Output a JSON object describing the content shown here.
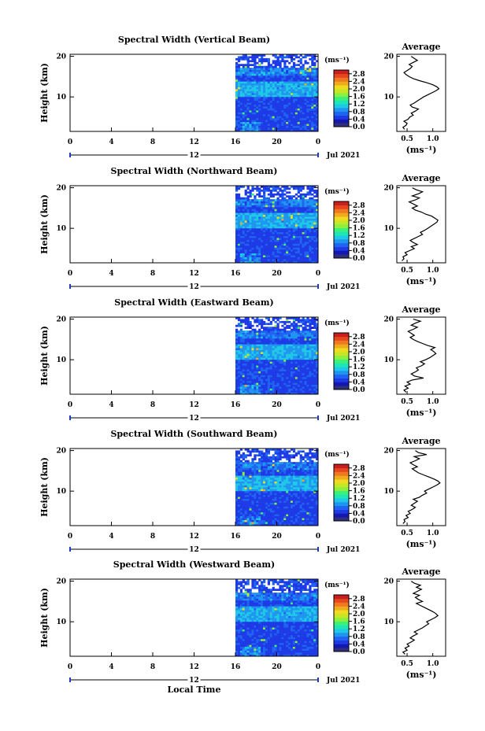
{
  "chart_data": {
    "type": "heatmap",
    "xlabel": "Local Time",
    "date_label": "Jul 2021",
    "x_ticks": [
      "0",
      "4",
      "8",
      "12",
      "16",
      "20",
      "0"
    ],
    "x_range_hours": [
      0,
      24
    ],
    "data_start_hour": 16,
    "day_marker_label": "12",
    "ylabel": "Height (km)",
    "y_ticks": [
      "20",
      "10"
    ],
    "y_range_km": [
      1.5,
      20.5
    ],
    "colorbar": {
      "unit": "(ms⁻¹)",
      "ticks": [
        "2.8",
        "2.4",
        "2.0",
        "1.6",
        "1.2",
        "0.8",
        "0.4",
        "0.0"
      ],
      "range": [
        0,
        3.0
      ],
      "colors": [
        "#30307a",
        "#1418b0",
        "#1e3ae6",
        "#1e64f0",
        "#1e96f0",
        "#1ec8e6",
        "#1ee6b4",
        "#3cf078",
        "#8cf03c",
        "#c8e628",
        "#f0dc1e",
        "#f0aa1e",
        "#f0781e",
        "#e6461e",
        "#c81e1e"
      ]
    },
    "average_panel": {
      "title": "Average",
      "xlabel": "(ms⁻¹)",
      "x_ticks": [
        "0.5",
        "1.0"
      ],
      "x_range": [
        0.3,
        1.25
      ],
      "y_ticks": [
        "20",
        "10"
      ]
    },
    "panels": [
      {
        "title": "Spectral Width (Vertical Beam)",
        "average_profile": [
          [
            2.0,
            0.45
          ],
          [
            2.5,
            0.42
          ],
          [
            3.0,
            0.48
          ],
          [
            3.5,
            0.5
          ],
          [
            4.0,
            0.44
          ],
          [
            4.5,
            0.52
          ],
          [
            5.0,
            0.55
          ],
          [
            5.5,
            0.62
          ],
          [
            6.0,
            0.58
          ],
          [
            6.5,
            0.66
          ],
          [
            7.0,
            0.72
          ],
          [
            7.5,
            0.6
          ],
          [
            8.0,
            0.56
          ],
          [
            8.5,
            0.64
          ],
          [
            9.0,
            0.7
          ],
          [
            9.5,
            0.76
          ],
          [
            10.0,
            0.82
          ],
          [
            10.5,
            0.9
          ],
          [
            11.0,
            0.98
          ],
          [
            11.5,
            1.06
          ],
          [
            12.0,
            1.12
          ],
          [
            12.5,
            1.08
          ],
          [
            13.0,
            1.0
          ],
          [
            13.5,
            0.88
          ],
          [
            14.0,
            0.74
          ],
          [
            14.5,
            0.62
          ],
          [
            15.0,
            0.54
          ],
          [
            15.5,
            0.48
          ],
          [
            16.0,
            0.44
          ],
          [
            16.5,
            0.5
          ],
          [
            17.0,
            0.56
          ],
          [
            17.5,
            0.6
          ],
          [
            18.0,
            0.54
          ],
          [
            18.5,
            0.62
          ],
          [
            19.0,
            0.7
          ],
          [
            19.5,
            0.64
          ],
          [
            20.0,
            0.58
          ]
        ]
      },
      {
        "title": "Spectral Width (Northward Beam)",
        "average_profile": [
          [
            2.0,
            0.4
          ],
          [
            2.5,
            0.44
          ],
          [
            3.0,
            0.42
          ],
          [
            3.5,
            0.5
          ],
          [
            4.0,
            0.46
          ],
          [
            4.5,
            0.55
          ],
          [
            5.0,
            0.64
          ],
          [
            5.5,
            0.58
          ],
          [
            6.0,
            0.7
          ],
          [
            6.5,
            0.62
          ],
          [
            7.0,
            0.56
          ],
          [
            7.5,
            0.64
          ],
          [
            8.0,
            0.72
          ],
          [
            8.5,
            0.8
          ],
          [
            9.0,
            0.76
          ],
          [
            9.5,
            0.84
          ],
          [
            10.0,
            0.9
          ],
          [
            10.5,
            0.96
          ],
          [
            11.0,
            1.02
          ],
          [
            11.5,
            1.08
          ],
          [
            12.0,
            1.1
          ],
          [
            12.5,
            1.04
          ],
          [
            13.0,
            0.98
          ],
          [
            13.5,
            0.86
          ],
          [
            14.0,
            0.78
          ],
          [
            14.5,
            0.66
          ],
          [
            15.0,
            0.6
          ],
          [
            15.5,
            0.7
          ],
          [
            16.0,
            0.62
          ],
          [
            16.5,
            0.54
          ],
          [
            17.0,
            0.66
          ],
          [
            17.5,
            0.74
          ],
          [
            18.0,
            0.6
          ],
          [
            18.5,
            0.72
          ],
          [
            19.0,
            0.8
          ],
          [
            19.5,
            0.68
          ],
          [
            20.0,
            0.6
          ]
        ]
      },
      {
        "title": "Spectral Width (Eastward Beam)",
        "average_profile": [
          [
            2.0,
            0.48
          ],
          [
            2.5,
            0.44
          ],
          [
            3.0,
            0.52
          ],
          [
            3.5,
            0.46
          ],
          [
            4.0,
            0.56
          ],
          [
            4.5,
            0.5
          ],
          [
            5.0,
            0.6
          ],
          [
            5.5,
            0.82
          ],
          [
            6.0,
            0.64
          ],
          [
            6.5,
            0.58
          ],
          [
            7.0,
            0.66
          ],
          [
            7.5,
            0.72
          ],
          [
            8.0,
            0.68
          ],
          [
            8.5,
            0.78
          ],
          [
            9.0,
            0.84
          ],
          [
            9.5,
            0.76
          ],
          [
            10.0,
            0.86
          ],
          [
            10.5,
            0.94
          ],
          [
            11.0,
            1.0
          ],
          [
            11.5,
            1.06
          ],
          [
            12.0,
            1.02
          ],
          [
            12.5,
            0.96
          ],
          [
            13.0,
            1.04
          ],
          [
            13.5,
            0.9
          ],
          [
            14.0,
            0.8
          ],
          [
            14.5,
            0.7
          ],
          [
            15.0,
            0.62
          ],
          [
            15.5,
            0.56
          ],
          [
            16.0,
            0.64
          ],
          [
            16.5,
            0.58
          ],
          [
            17.0,
            0.52
          ],
          [
            17.5,
            0.62
          ],
          [
            18.0,
            0.7
          ],
          [
            18.5,
            0.58
          ],
          [
            19.0,
            0.66
          ],
          [
            19.5,
            0.76
          ],
          [
            20.0,
            0.62
          ]
        ]
      },
      {
        "title": "Spectral Width (Southward Beam)",
        "average_profile": [
          [
            2.0,
            0.42
          ],
          [
            2.5,
            0.46
          ],
          [
            3.0,
            0.44
          ],
          [
            3.5,
            0.52
          ],
          [
            4.0,
            0.48
          ],
          [
            4.5,
            0.56
          ],
          [
            5.0,
            0.52
          ],
          [
            5.5,
            0.6
          ],
          [
            6.0,
            0.66
          ],
          [
            6.5,
            0.58
          ],
          [
            7.0,
            0.64
          ],
          [
            7.5,
            0.7
          ],
          [
            8.0,
            0.62
          ],
          [
            8.5,
            0.74
          ],
          [
            9.0,
            0.8
          ],
          [
            9.5,
            0.88
          ],
          [
            10.0,
            0.84
          ],
          [
            10.5,
            0.92
          ],
          [
            11.0,
            1.0
          ],
          [
            11.5,
            1.08
          ],
          [
            12.0,
            1.14
          ],
          [
            12.5,
            1.1
          ],
          [
            13.0,
            1.02
          ],
          [
            13.5,
            0.92
          ],
          [
            14.0,
            0.82
          ],
          [
            14.5,
            0.72
          ],
          [
            15.0,
            0.66
          ],
          [
            15.5,
            0.6
          ],
          [
            16.0,
            0.7
          ],
          [
            16.5,
            0.62
          ],
          [
            17.0,
            0.56
          ],
          [
            17.5,
            0.66
          ],
          [
            18.0,
            0.74
          ],
          [
            18.5,
            0.64
          ],
          [
            19.0,
            0.88
          ],
          [
            19.5,
            0.72
          ],
          [
            20.0,
            0.66
          ]
        ]
      },
      {
        "title": "Spectral Width (Westward Beam)",
        "average_profile": [
          [
            2.0,
            0.46
          ],
          [
            2.5,
            0.42
          ],
          [
            3.0,
            0.5
          ],
          [
            3.5,
            0.46
          ],
          [
            4.0,
            0.54
          ],
          [
            4.5,
            0.5
          ],
          [
            5.0,
            0.58
          ],
          [
            5.5,
            0.64
          ],
          [
            6.0,
            0.56
          ],
          [
            6.5,
            0.62
          ],
          [
            7.0,
            0.7
          ],
          [
            7.5,
            0.64
          ],
          [
            8.0,
            0.72
          ],
          [
            8.5,
            0.8
          ],
          [
            9.0,
            0.86
          ],
          [
            9.5,
            0.92
          ],
          [
            10.0,
            0.88
          ],
          [
            10.5,
            0.96
          ],
          [
            11.0,
            1.04
          ],
          [
            11.5,
            1.1
          ],
          [
            12.0,
            1.06
          ],
          [
            12.5,
            1.0
          ],
          [
            13.0,
            0.92
          ],
          [
            13.5,
            0.84
          ],
          [
            14.0,
            0.76
          ],
          [
            14.5,
            0.68
          ],
          [
            15.0,
            0.8
          ],
          [
            15.5,
            0.72
          ],
          [
            16.0,
            0.66
          ],
          [
            16.5,
            0.74
          ],
          [
            17.0,
            0.62
          ],
          [
            17.5,
            0.7
          ],
          [
            18.0,
            0.78
          ],
          [
            18.5,
            0.68
          ],
          [
            19.0,
            0.76
          ],
          [
            19.5,
            0.64
          ],
          [
            20.0,
            0.58
          ]
        ]
      }
    ]
  }
}
